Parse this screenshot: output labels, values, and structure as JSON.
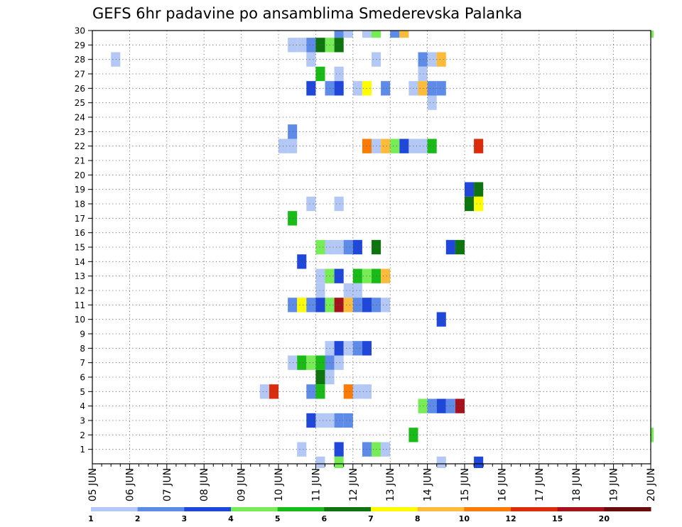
{
  "title": "GEFS 6hr padavine po ansamblima Smederevska Palanka",
  "chart_data": {
    "type": "heatmap",
    "title": "GEFS 6hr padavine po ansamblima Smederevska Palanka",
    "x_tick_labels": [
      "05 JUN",
      "06 JUN",
      "07 JUN",
      "08 JUN",
      "09 JUN",
      "10 JUN",
      "11 JUN",
      "12 JUN",
      "13 JUN",
      "14 JUN",
      "15 JUN",
      "16 JUN",
      "17 JUN",
      "18 JUN",
      "19 JUN",
      "20 JUN"
    ],
    "x_range": [
      "05 JUN 00h",
      "20 JUN 00h"
    ],
    "time_step_hours": 6,
    "y_tick_labels": [
      "1",
      "2",
      "3",
      "4",
      "5",
      "6",
      "7",
      "8",
      "9",
      "10",
      "11",
      "12",
      "13",
      "14",
      "15",
      "16",
      "17",
      "18",
      "19",
      "20",
      "21",
      "22",
      "23",
      "24",
      "25",
      "26",
      "27",
      "28",
      "29",
      "30"
    ],
    "y_range": [
      0,
      30
    ],
    "grid": true,
    "colorbar": {
      "placement": "bottom",
      "labels": [
        "1",
        "2",
        "3",
        "4",
        "5",
        "6",
        "7",
        "8",
        "10",
        "12",
        "15",
        "20"
      ],
      "colors": [
        "#b3c8f5",
        "#5f8be8",
        "#1f47d9",
        "#77ec56",
        "#18bb18",
        "#0d7410",
        "#fefe00",
        "#fdbb3c",
        "#f97b08",
        "#db2c0c",
        "#a6121b",
        "#6b0a0a"
      ]
    },
    "cells": [
      [
        30,
        26,
        "#5f8be8"
      ],
      [
        30,
        27,
        "#b3c8f5"
      ],
      [
        30,
        29,
        "#b3c8f5"
      ],
      [
        30,
        30,
        "#77ec56"
      ],
      [
        30,
        32,
        "#5f8be8"
      ],
      [
        30,
        33,
        "#fdbb3c"
      ],
      [
        30,
        60,
        "#77ec56"
      ],
      [
        29,
        21,
        "#b3c8f5"
      ],
      [
        29,
        22,
        "#b3c8f5"
      ],
      [
        29,
        23,
        "#5f8be8"
      ],
      [
        29,
        24,
        "#0d7410"
      ],
      [
        29,
        25,
        "#77ec56"
      ],
      [
        29,
        26,
        "#0d7410"
      ],
      [
        28,
        2,
        "#b3c8f5"
      ],
      [
        28,
        23,
        "#b3c8f5"
      ],
      [
        28,
        30,
        "#b3c8f5"
      ],
      [
        28,
        35,
        "#5f8be8"
      ],
      [
        28,
        36,
        "#b3c8f5"
      ],
      [
        28,
        37,
        "#fdbb3c"
      ],
      [
        27,
        24,
        "#18bb18"
      ],
      [
        27,
        26,
        "#b3c8f5"
      ],
      [
        27,
        35,
        "#b3c8f5"
      ],
      [
        26,
        23,
        "#1f47d9"
      ],
      [
        26,
        25,
        "#5f8be8"
      ],
      [
        26,
        26,
        "#1f47d9"
      ],
      [
        26,
        28,
        "#b3c8f5"
      ],
      [
        26,
        29,
        "#fefe00"
      ],
      [
        26,
        31,
        "#5f8be8"
      ],
      [
        26,
        34,
        "#b3c8f5"
      ],
      [
        26,
        35,
        "#fdbb3c"
      ],
      [
        26,
        36,
        "#5f8be8"
      ],
      [
        26,
        37,
        "#5f8be8"
      ],
      [
        25,
        36,
        "#b3c8f5"
      ],
      [
        23,
        21,
        "#5f8be8"
      ],
      [
        22,
        20,
        "#b3c8f5"
      ],
      [
        22,
        21,
        "#b3c8f5"
      ],
      [
        22,
        29,
        "#f97b08"
      ],
      [
        22,
        30,
        "#b3c8f5"
      ],
      [
        22,
        31,
        "#fdbb3c"
      ],
      [
        22,
        32,
        "#77ec56"
      ],
      [
        22,
        33,
        "#1f47d9"
      ],
      [
        22,
        34,
        "#b3c8f5"
      ],
      [
        22,
        35,
        "#b3c8f5"
      ],
      [
        22,
        36,
        "#18bb18"
      ],
      [
        22,
        41,
        "#db2c0c"
      ],
      [
        19,
        40,
        "#1f47d9"
      ],
      [
        19,
        41,
        "#0d7410"
      ],
      [
        18,
        23,
        "#b3c8f5"
      ],
      [
        18,
        26,
        "#b3c8f5"
      ],
      [
        18,
        40,
        "#0d7410"
      ],
      [
        18,
        41,
        "#fefe00"
      ],
      [
        17,
        21,
        "#18bb18"
      ],
      [
        15,
        24,
        "#77ec56"
      ],
      [
        15,
        25,
        "#b3c8f5"
      ],
      [
        15,
        26,
        "#b3c8f5"
      ],
      [
        15,
        27,
        "#5f8be8"
      ],
      [
        15,
        28,
        "#1f47d9"
      ],
      [
        15,
        30,
        "#0d7410"
      ],
      [
        15,
        38,
        "#1f47d9"
      ],
      [
        15,
        39,
        "#0d7410"
      ],
      [
        14,
        22,
        "#1f47d9"
      ],
      [
        13,
        24,
        "#b3c8f5"
      ],
      [
        13,
        25,
        "#77ec56"
      ],
      [
        13,
        26,
        "#1f47d9"
      ],
      [
        13,
        28,
        "#18bb18"
      ],
      [
        13,
        29,
        "#77ec56"
      ],
      [
        13,
        30,
        "#18bb18"
      ],
      [
        13,
        31,
        "#fdbb3c"
      ],
      [
        12,
        24,
        "#b3c8f5"
      ],
      [
        12,
        27,
        "#b3c8f5"
      ],
      [
        12,
        28,
        "#b3c8f5"
      ],
      [
        11,
        21,
        "#5f8be8"
      ],
      [
        11,
        22,
        "#fefe00"
      ],
      [
        11,
        23,
        "#5f8be8"
      ],
      [
        11,
        24,
        "#1f47d9"
      ],
      [
        11,
        25,
        "#77ec56"
      ],
      [
        11,
        26,
        "#a6121b"
      ],
      [
        11,
        27,
        "#fdbb3c"
      ],
      [
        11,
        28,
        "#5f8be8"
      ],
      [
        11,
        29,
        "#1f47d9"
      ],
      [
        11,
        30,
        "#5f8be8"
      ],
      [
        11,
        31,
        "#b3c8f5"
      ],
      [
        10,
        37,
        "#1f47d9"
      ],
      [
        8,
        25,
        "#b3c8f5"
      ],
      [
        8,
        26,
        "#1f47d9"
      ],
      [
        8,
        27,
        "#b3c8f5"
      ],
      [
        8,
        28,
        "#5f8be8"
      ],
      [
        8,
        29,
        "#1f47d9"
      ],
      [
        7,
        21,
        "#b3c8f5"
      ],
      [
        7,
        22,
        "#18bb18"
      ],
      [
        7,
        23,
        "#77ec56"
      ],
      [
        7,
        24,
        "#18bb18"
      ],
      [
        7,
        25,
        "#5f8be8"
      ],
      [
        7,
        26,
        "#b3c8f5"
      ],
      [
        6,
        24,
        "#0d7410"
      ],
      [
        6,
        25,
        "#b3c8f5"
      ],
      [
        5,
        18,
        "#b3c8f5"
      ],
      [
        5,
        19,
        "#db2c0c"
      ],
      [
        5,
        23,
        "#5f8be8"
      ],
      [
        5,
        24,
        "#18bb18"
      ],
      [
        5,
        27,
        "#f97b08"
      ],
      [
        5,
        28,
        "#b3c8f5"
      ],
      [
        5,
        29,
        "#b3c8f5"
      ],
      [
        4,
        35,
        "#77ec56"
      ],
      [
        4,
        36,
        "#5f8be8"
      ],
      [
        4,
        37,
        "#1f47d9"
      ],
      [
        4,
        38,
        "#5f8be8"
      ],
      [
        4,
        39,
        "#a6121b"
      ],
      [
        3,
        23,
        "#1f47d9"
      ],
      [
        3,
        24,
        "#b3c8f5"
      ],
      [
        3,
        25,
        "#b3c8f5"
      ],
      [
        3,
        26,
        "#5f8be8"
      ],
      [
        3,
        27,
        "#5f8be8"
      ],
      [
        2,
        34,
        "#18bb18"
      ],
      [
        2,
        60,
        "#77ec56"
      ],
      [
        1,
        22,
        "#b3c8f5"
      ],
      [
        1,
        26,
        "#1f47d9"
      ],
      [
        1,
        29,
        "#5f8be8"
      ],
      [
        1,
        30,
        "#77ec56"
      ],
      [
        1,
        31,
        "#b3c8f5"
      ],
      [
        0,
        24,
        "#b3c8f5"
      ],
      [
        0,
        26,
        "#77ec56"
      ],
      [
        0,
        37,
        "#b3c8f5"
      ],
      [
        0,
        41,
        "#1f47d9"
      ]
    ]
  }
}
